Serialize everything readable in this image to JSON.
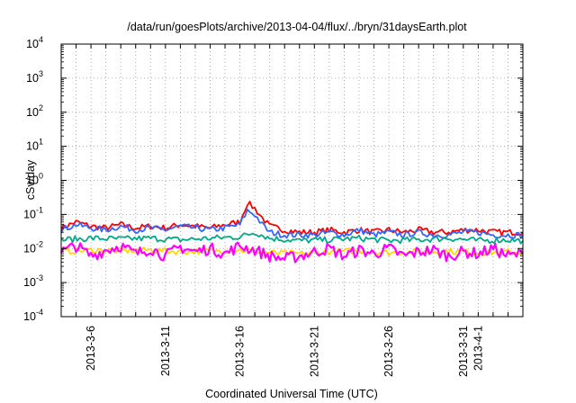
{
  "chart_data": {
    "type": "line",
    "title": "/data/run/goesPlots/archive/2013-04-04/flux/../bryn/31daysEarth.plot",
    "xlabel": "Coordinated Universal Time (UTC)",
    "ylabel": "cSv/day",
    "y_scale": "log",
    "ylim": [
      0.0001,
      10000
    ],
    "y_ticks": [
      {
        "base": "10",
        "exp": "-4",
        "value": 0.0001
      },
      {
        "base": "10",
        "exp": "-3",
        "value": 0.001
      },
      {
        "base": "10",
        "exp": "-2",
        "value": 0.01
      },
      {
        "base": "10",
        "exp": "-1",
        "value": 0.1
      },
      {
        "base": "10",
        "exp": "0",
        "value": 1
      },
      {
        "base": "10",
        "exp": "1",
        "value": 10
      },
      {
        "base": "10",
        "exp": "2",
        "value": 100
      },
      {
        "base": "10",
        "exp": "3",
        "value": 1000
      },
      {
        "base": "10",
        "exp": "4",
        "value": 10000
      }
    ],
    "xlim": [
      "2013-03-04",
      "2013-04-04"
    ],
    "x_ticks": [
      "2013-3-6",
      "2013-3-11",
      "2013-3-16",
      "2013-3-21",
      "2013-3-26",
      "2013-3-31",
      "2013-4-1"
    ],
    "grid": true,
    "legend": "none",
    "series": [
      {
        "color": "#ff0000",
        "x": [
          "2013-03-04",
          "2013-03-05",
          "2013-03-06",
          "2013-03-07",
          "2013-03-08",
          "2013-03-09",
          "2013-03-10",
          "2013-03-11",
          "2013-03-12",
          "2013-03-13",
          "2013-03-14",
          "2013-03-15",
          "2013-03-16",
          "2013-03-16T12:00",
          "2013-03-17",
          "2013-03-17T12:00",
          "2013-03-18",
          "2013-03-19",
          "2013-03-20",
          "2013-03-21",
          "2013-03-22",
          "2013-03-23",
          "2013-03-24",
          "2013-03-25",
          "2013-03-26",
          "2013-03-27",
          "2013-03-28",
          "2013-03-29",
          "2013-03-30",
          "2013-03-31",
          "2013-04-01",
          "2013-04-02",
          "2013-04-03",
          "2013-04-04"
        ],
        "y": [
          0.04,
          0.06,
          0.045,
          0.04,
          0.05,
          0.04,
          0.045,
          0.04,
          0.05,
          0.045,
          0.04,
          0.05,
          0.06,
          0.22,
          0.15,
          0.08,
          0.045,
          0.035,
          0.03,
          0.03,
          0.035,
          0.03,
          0.035,
          0.03,
          0.035,
          0.03,
          0.035,
          0.03,
          0.03,
          0.035,
          0.035,
          0.03,
          0.03,
          0.03
        ]
      },
      {
        "color": "#3366ff",
        "x": [
          "2013-03-04",
          "2013-03-05",
          "2013-03-06",
          "2013-03-07",
          "2013-03-08",
          "2013-03-09",
          "2013-03-10",
          "2013-03-11",
          "2013-03-12",
          "2013-03-13",
          "2013-03-14",
          "2013-03-15",
          "2013-03-16",
          "2013-03-16T12:00",
          "2013-03-17",
          "2013-03-17T12:00",
          "2013-03-18",
          "2013-03-19",
          "2013-03-20",
          "2013-03-21",
          "2013-03-22",
          "2013-03-23",
          "2013-03-24",
          "2013-03-25",
          "2013-03-26",
          "2013-03-27",
          "2013-03-28",
          "2013-03-29",
          "2013-03-30",
          "2013-03-31",
          "2013-04-01",
          "2013-04-02",
          "2013-04-03",
          "2013-04-04"
        ],
        "y": [
          0.035,
          0.05,
          0.04,
          0.035,
          0.045,
          0.035,
          0.04,
          0.035,
          0.045,
          0.04,
          0.035,
          0.04,
          0.05,
          0.13,
          0.1,
          0.05,
          0.03,
          0.025,
          0.025,
          0.025,
          0.03,
          0.025,
          0.035,
          0.025,
          0.03,
          0.025,
          0.03,
          0.025,
          0.025,
          0.03,
          0.03,
          0.025,
          0.025,
          0.025
        ]
      },
      {
        "color": "#00aa88",
        "x": [
          "2013-03-04",
          "2013-03-06",
          "2013-03-08",
          "2013-03-10",
          "2013-03-12",
          "2013-03-14",
          "2013-03-16",
          "2013-03-17",
          "2013-03-18",
          "2013-03-20",
          "2013-03-22",
          "2013-03-24",
          "2013-03-26",
          "2013-03-28",
          "2013-03-30",
          "2013-04-01",
          "2013-04-03",
          "2013-04-04"
        ],
        "y": [
          0.018,
          0.02,
          0.019,
          0.02,
          0.018,
          0.02,
          0.022,
          0.03,
          0.02,
          0.017,
          0.018,
          0.02,
          0.017,
          0.018,
          0.02,
          0.017,
          0.018,
          0.017
        ]
      },
      {
        "color": "#ffd700",
        "x": [
          "2013-03-04",
          "2013-03-06",
          "2013-03-08",
          "2013-03-10",
          "2013-03-12",
          "2013-03-14",
          "2013-03-16",
          "2013-03-18",
          "2013-03-20",
          "2013-03-22",
          "2013-03-24",
          "2013-03-26",
          "2013-03-28",
          "2013-03-30",
          "2013-04-01",
          "2013-04-03",
          "2013-04-04"
        ],
        "y": [
          0.008,
          0.009,
          0.0085,
          0.009,
          0.008,
          0.0085,
          0.009,
          0.0075,
          0.007,
          0.008,
          0.0085,
          0.0075,
          0.008,
          0.0085,
          0.0075,
          0.008,
          0.0075
        ]
      },
      {
        "color": "#ff00ff",
        "x": [
          "2013-03-04",
          "2013-03-05",
          "2013-03-06",
          "2013-03-07",
          "2013-03-08",
          "2013-03-09",
          "2013-03-10",
          "2013-03-11",
          "2013-03-12",
          "2013-03-13",
          "2013-03-14",
          "2013-03-15",
          "2013-03-16",
          "2013-03-17",
          "2013-03-18",
          "2013-03-19",
          "2013-03-20",
          "2013-03-21",
          "2013-03-22",
          "2013-03-23",
          "2013-03-24",
          "2013-03-25",
          "2013-03-26",
          "2013-03-27",
          "2013-03-28",
          "2013-03-29",
          "2013-03-30",
          "2013-03-31",
          "2013-04-01",
          "2013-04-02",
          "2013-04-03",
          "2013-04-04"
        ],
        "y": [
          0.008,
          0.012,
          0.006,
          0.009,
          0.012,
          0.007,
          0.01,
          0.006,
          0.011,
          0.008,
          0.01,
          0.007,
          0.012,
          0.009,
          0.006,
          0.005,
          0.006,
          0.008,
          0.01,
          0.006,
          0.009,
          0.007,
          0.01,
          0.006,
          0.008,
          0.009,
          0.006,
          0.008,
          0.007,
          0.01,
          0.006,
          0.007
        ]
      }
    ]
  }
}
